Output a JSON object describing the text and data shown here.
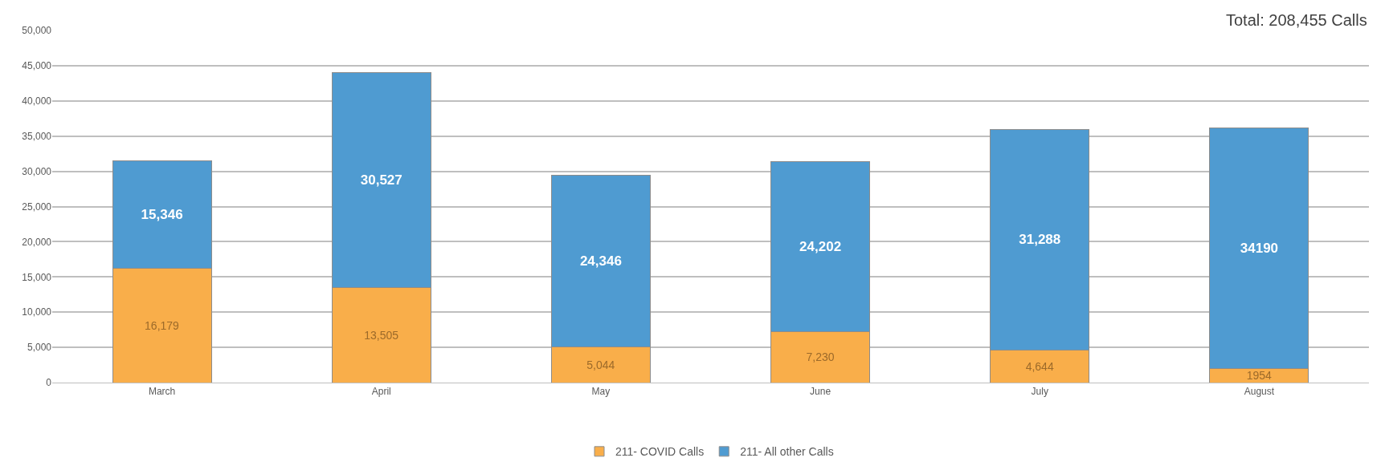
{
  "chart_data": {
    "type": "bar",
    "stacked": true,
    "annotations": [
      "Total: 208,455 Calls"
    ],
    "categories": [
      "March",
      "April",
      "May",
      "June",
      "July",
      "August"
    ],
    "series": [
      {
        "name": "211- COVID Calls",
        "color": "#f9ae4a",
        "values": [
          16179,
          13505,
          5044,
          7230,
          4644,
          1954
        ],
        "value_labels": [
          "16,179",
          "13,505",
          "5,044",
          "7,230",
          "4,644",
          "1954"
        ]
      },
      {
        "name": "211- All other Calls",
        "color": "#4f9bd1",
        "values": [
          15346,
          30527,
          24346,
          24202,
          31288,
          34190
        ],
        "value_labels": [
          "15,346",
          "30,527",
          "24,346",
          "24,202",
          "31,288",
          "34190"
        ]
      }
    ],
    "ylim": [
      0,
      50000
    ],
    "yticks": [
      {
        "value": 0,
        "label": "0"
      },
      {
        "value": 5000,
        "label": "5,000"
      },
      {
        "value": 10000,
        "label": "10,000"
      },
      {
        "value": 15000,
        "label": "15,000"
      },
      {
        "value": 20000,
        "label": "20,000"
      },
      {
        "value": 25000,
        "label": "25,000"
      },
      {
        "value": 30000,
        "label": "30,000"
      },
      {
        "value": 35000,
        "label": "35,000"
      },
      {
        "value": 40000,
        "label": "40,000"
      },
      {
        "value": 45000,
        "label": "45,000"
      },
      {
        "value": 50000,
        "label": "50,000"
      }
    ],
    "grid": "y",
    "legend": "bottom"
  }
}
